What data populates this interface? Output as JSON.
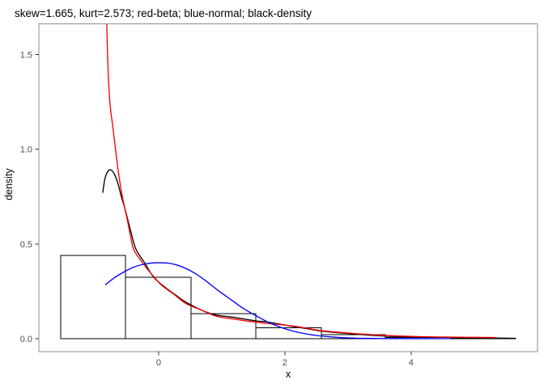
{
  "chart_data": {
    "type": "histogram",
    "title": "skew=1.665, kurt=2.573; red-beta; blue-normal; black-density",
    "xlabel": "x",
    "ylabel": "density",
    "xlim": [
      -1.897,
      6.003
    ],
    "ylim": [
      -0.0682,
      1.662
    ],
    "grid": false,
    "legend_position": "none (series identified by colors named in title)",
    "x_ticks": {
      "values": [
        0,
        2,
        4
      ],
      "labels": [
        "0",
        "2",
        "4"
      ]
    },
    "y_ticks": {
      "values": [
        0,
        0.5,
        1.0,
        1.5
      ],
      "labels": [
        "0.0",
        "0.5",
        "1.0",
        "1.5"
      ]
    },
    "histogram": {
      "fill": "#ffffff",
      "stroke": "#000000",
      "bin_edges": [
        -1.551,
        -0.526,
        0.513,
        1.538,
        2.577,
        3.59,
        4.628,
        5.654
      ],
      "densities": [
        0.439,
        0.324,
        0.132,
        0.058,
        0.021,
        0.0064,
        0.003
      ]
    },
    "series": [
      {
        "name": "density-curve",
        "label": "black-density",
        "color": "#000000",
        "points": [
          [
            -0.885,
            0.77
          ],
          [
            -0.85,
            0.845
          ],
          [
            -0.8,
            0.885
          ],
          [
            -0.756,
            0.891
          ],
          [
            -0.7,
            0.868
          ],
          [
            -0.645,
            0.82
          ],
          [
            -0.59,
            0.75
          ],
          [
            -0.52,
            0.67
          ],
          [
            -0.44,
            0.565
          ],
          [
            -0.36,
            0.473
          ],
          [
            -0.22,
            0.4
          ],
          [
            -0.077,
            0.324
          ],
          [
            0.1,
            0.272
          ],
          [
            0.28,
            0.228
          ],
          [
            0.436,
            0.192
          ],
          [
            0.7,
            0.148
          ],
          [
            0.91,
            0.125
          ],
          [
            1.205,
            0.112
          ],
          [
            1.547,
            0.094
          ],
          [
            1.718,
            0.0885
          ],
          [
            2.103,
            0.066
          ],
          [
            2.4,
            0.05
          ],
          [
            2.577,
            0.0405
          ],
          [
            3.0,
            0.0275
          ],
          [
            3.59,
            0.0135
          ],
          [
            4.0,
            0.01
          ],
          [
            4.667,
            0.0068
          ],
          [
            5.1,
            0.0045
          ],
          [
            5.654,
            0.002
          ]
        ]
      },
      {
        "name": "beta-curve",
        "label": "red-beta",
        "color": "#ff0000",
        "points": [
          [
            -0.825,
            1.7
          ],
          [
            -0.8,
            1.42
          ],
          [
            -0.77,
            1.24
          ],
          [
            -0.731,
            1.133
          ],
          [
            -0.69,
            1.02
          ],
          [
            -0.645,
            0.9
          ],
          [
            -0.603,
            0.805
          ],
          [
            -0.55,
            0.71
          ],
          [
            -0.5,
            0.635
          ],
          [
            -0.45,
            0.55
          ],
          [
            -0.397,
            0.473
          ],
          [
            -0.31,
            0.426
          ],
          [
            -0.205,
            0.379
          ],
          [
            -0.077,
            0.328
          ],
          [
            0.051,
            0.281
          ],
          [
            0.244,
            0.234
          ],
          [
            0.436,
            0.185
          ],
          [
            0.667,
            0.153
          ],
          [
            0.91,
            0.119
          ],
          [
            1.205,
            0.103
          ],
          [
            1.45,
            0.091
          ],
          [
            1.718,
            0.081
          ],
          [
            2.103,
            0.068
          ],
          [
            2.35,
            0.055
          ],
          [
            2.577,
            0.0426
          ],
          [
            3.0,
            0.03
          ],
          [
            3.3,
            0.023
          ],
          [
            3.59,
            0.017
          ],
          [
            4.15,
            0.0107
          ],
          [
            4.667,
            0.0085
          ],
          [
            5.0,
            0.0072
          ],
          [
            5.333,
            0.0064
          ]
        ]
      },
      {
        "name": "normal-curve",
        "label": "blue-normal",
        "color": "#0000ff",
        "points": [
          [
            -0.846,
            0.284
          ],
          [
            -0.7,
            0.322
          ],
          [
            -0.55,
            0.352
          ],
          [
            -0.4,
            0.377
          ],
          [
            -0.25,
            0.392
          ],
          [
            -0.1,
            0.4
          ],
          [
            -0.02,
            0.401
          ],
          [
            0.15,
            0.399
          ],
          [
            0.3,
            0.388
          ],
          [
            0.45,
            0.368
          ],
          [
            0.6,
            0.34
          ],
          [
            0.75,
            0.305
          ],
          [
            0.95,
            0.253
          ],
          [
            1.15,
            0.205
          ],
          [
            1.35,
            0.158
          ],
          [
            1.55,
            0.12
          ],
          [
            1.75,
            0.085
          ],
          [
            1.95,
            0.058
          ],
          [
            2.15,
            0.0385
          ],
          [
            2.35,
            0.0245
          ],
          [
            2.55,
            0.015
          ],
          [
            2.75,
            0.0088
          ],
          [
            3.0,
            0.0044
          ],
          [
            3.3,
            0.0018
          ],
          [
            3.6,
            0.0008
          ],
          [
            4.0,
            0.0003
          ],
          [
            4.63,
            0.0001
          ]
        ]
      }
    ],
    "colors": {
      "background": "#ffffff",
      "panel_background": "#ffffff",
      "panel_border": "#8e8e8e",
      "tick_mark": "#333333",
      "tick_label": "#4d4d4d",
      "text": "#000000"
    }
  }
}
